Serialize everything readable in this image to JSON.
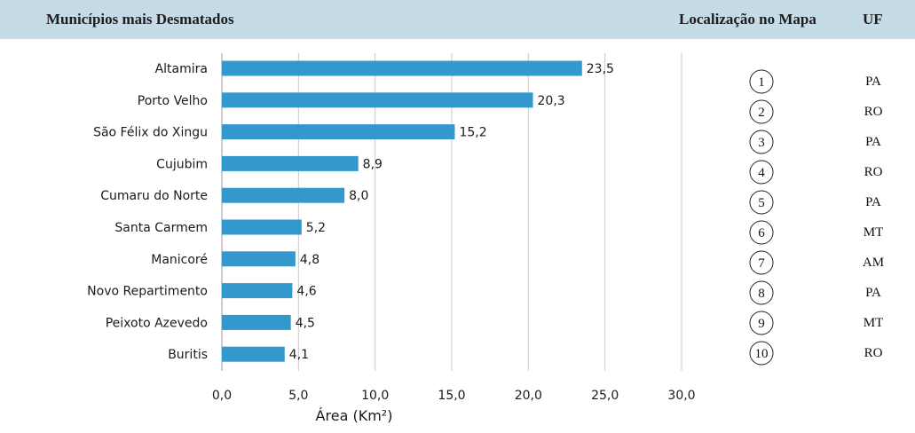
{
  "header": {
    "title": "Municípios mais Desmatados",
    "location_label": "Localização no Mapa",
    "uf_label": "UF"
  },
  "chart_data": {
    "type": "bar",
    "orientation": "horizontal",
    "categories": [
      "Altamira",
      "Porto Velho",
      "São Félix do Xingu",
      "Cujubim",
      "Cumaru do Norte",
      "Santa Carmem",
      "Manicoré",
      "Novo Repartimento",
      "Peixoto Azevedo",
      "Buritis"
    ],
    "values": [
      23.5,
      20.3,
      15.2,
      8.9,
      8.0,
      5.2,
      4.8,
      4.6,
      4.5,
      4.1
    ],
    "value_labels": [
      "23,5",
      "20,3",
      "15,2",
      "8,9",
      "8,0",
      "5,2",
      "4,8",
      "4,6",
      "4,5",
      "4,1"
    ],
    "xlabel": "Área (Km²)",
    "xlim": [
      0,
      30
    ],
    "xticks": [
      0,
      5,
      10,
      15,
      20,
      25,
      30
    ],
    "xtick_labels": [
      "0,0",
      "5,0",
      "10,0",
      "15,0",
      "20,0",
      "25,0",
      "30,0"
    ],
    "grid": "vertical",
    "bar_color": "#3399cc"
  },
  "table": {
    "rows": [
      {
        "num": "1",
        "uf": "PA"
      },
      {
        "num": "2",
        "uf": "RO"
      },
      {
        "num": "3",
        "uf": "PA"
      },
      {
        "num": "4",
        "uf": "RO"
      },
      {
        "num": "5",
        "uf": "PA"
      },
      {
        "num": "6",
        "uf": "MT"
      },
      {
        "num": "7",
        "uf": "AM"
      },
      {
        "num": "8",
        "uf": "PA"
      },
      {
        "num": "9",
        "uf": "MT"
      },
      {
        "num": "10",
        "uf": "RO"
      }
    ]
  }
}
